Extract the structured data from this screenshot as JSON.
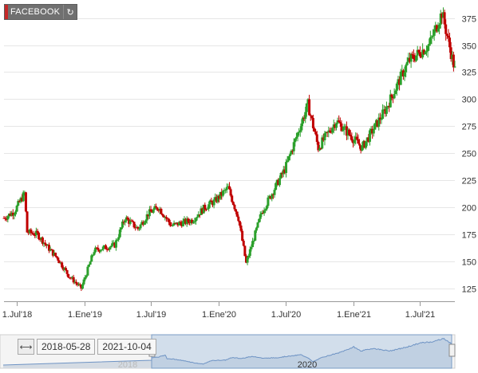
{
  "ticker": {
    "label": "FACEBOOK",
    "swatch_color": "#c62828",
    "reload_icon": "refresh-icon"
  },
  "range": {
    "from": "2018-05-28",
    "to": "2021-10-04",
    "icon": "horizontal-resize-icon"
  },
  "navigator": {
    "year_labels": [
      "2018",
      "2020"
    ]
  },
  "colors": {
    "up": "#2ca02c",
    "down": "#c00000",
    "grid": "#e6e6e6",
    "navigator_fill": "#a9c3e0"
  },
  "chart_data": {
    "type": "candlestick",
    "title": "",
    "y_axis": {
      "ticks": [
        125,
        150,
        175,
        200,
        225,
        250,
        275,
        300,
        325,
        350,
        375
      ],
      "range": [
        113,
        388
      ],
      "position": "right"
    },
    "x_axis": {
      "ticks": [
        "1.Jul'18",
        "1.Ene'19",
        "1.Jul'19",
        "1.Ene'20",
        "1.Jul'20",
        "1.Ene'21",
        "1.Jul'21"
      ],
      "range": [
        "2018-05-28",
        "2021-10-04"
      ]
    },
    "grid": true,
    "weekly_close_approx": [
      {
        "date": "2018-05-28",
        "close": 190
      },
      {
        "date": "2018-06-25",
        "close": 196
      },
      {
        "date": "2018-07-23",
        "close": 213
      },
      {
        "date": "2018-07-30",
        "close": 177
      },
      {
        "date": "2018-08-27",
        "close": 175
      },
      {
        "date": "2018-09-24",
        "close": 163
      },
      {
        "date": "2018-10-22",
        "close": 152
      },
      {
        "date": "2018-11-19",
        "close": 137
      },
      {
        "date": "2018-12-24",
        "close": 125
      },
      {
        "date": "2019-01-28",
        "close": 160
      },
      {
        "date": "2019-03-25",
        "close": 165
      },
      {
        "date": "2019-04-22",
        "close": 190
      },
      {
        "date": "2019-05-27",
        "close": 180
      },
      {
        "date": "2019-06-24",
        "close": 194
      },
      {
        "date": "2019-07-22",
        "close": 200
      },
      {
        "date": "2019-08-26",
        "close": 183
      },
      {
        "date": "2019-10-21",
        "close": 188
      },
      {
        "date": "2019-11-25",
        "close": 200
      },
      {
        "date": "2019-12-23",
        "close": 206
      },
      {
        "date": "2020-01-27",
        "close": 218
      },
      {
        "date": "2020-02-24",
        "close": 190
      },
      {
        "date": "2020-03-16",
        "close": 148
      },
      {
        "date": "2020-04-27",
        "close": 195
      },
      {
        "date": "2020-06-29",
        "close": 235
      },
      {
        "date": "2020-08-31",
        "close": 295
      },
      {
        "date": "2020-09-28",
        "close": 255
      },
      {
        "date": "2020-11-16",
        "close": 280
      },
      {
        "date": "2021-01-25",
        "close": 255
      },
      {
        "date": "2021-03-29",
        "close": 290
      },
      {
        "date": "2021-05-31",
        "close": 335
      },
      {
        "date": "2021-07-26",
        "close": 350
      },
      {
        "date": "2021-08-30",
        "close": 380
      },
      {
        "date": "2021-10-04",
        "close": 327
      }
    ]
  }
}
